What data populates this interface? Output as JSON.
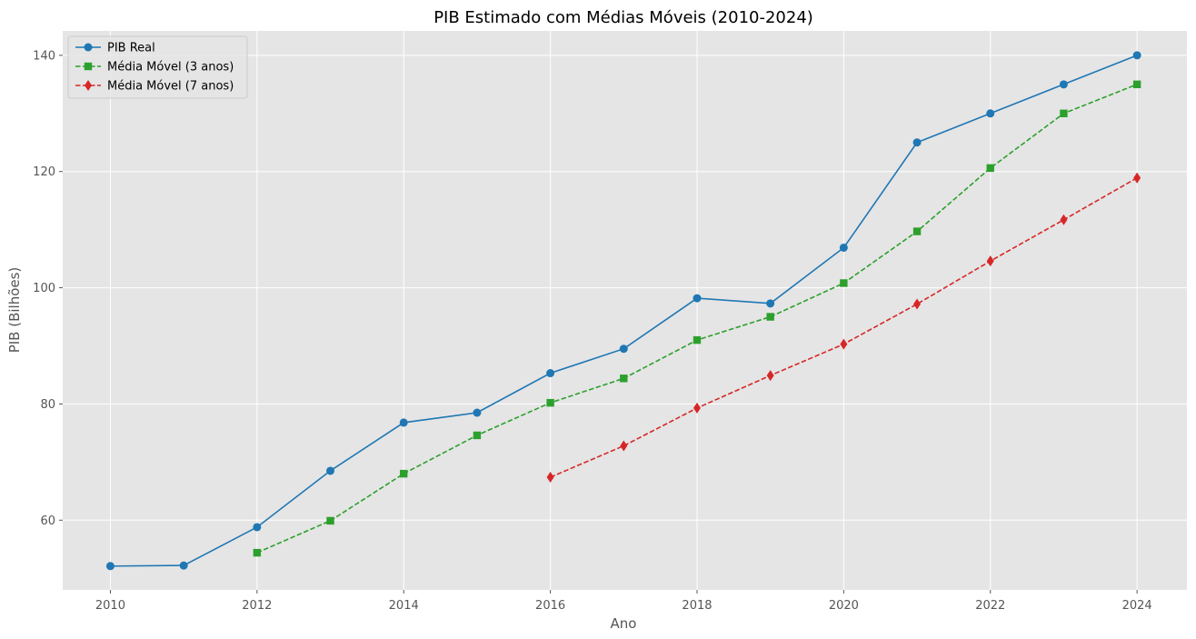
{
  "chart_data": {
    "type": "line",
    "title": "PIB Estimado com Médias Móveis (2010-2024)",
    "xlabel": "Ano",
    "ylabel": "PIB (Bilhões)",
    "xlim": [
      2009.35,
      2024.68
    ],
    "ylim": [
      48,
      144.2
    ],
    "xticks": [
      2010,
      2012,
      2014,
      2016,
      2018,
      2020,
      2022,
      2024
    ],
    "yticks": [
      60,
      80,
      100,
      120,
      140
    ],
    "grid": true,
    "legend_position": "top-left",
    "background": "#e5e5e5",
    "x": [
      2010,
      2011,
      2012,
      2013,
      2014,
      2015,
      2016,
      2017,
      2018,
      2019,
      2020,
      2021,
      2022,
      2023,
      2024
    ],
    "series": [
      {
        "name": "PIB Real",
        "color": "#1f77b4",
        "line_style": "solid",
        "marker": "circle",
        "values": [
          52.1,
          52.2,
          58.8,
          68.5,
          76.8,
          78.5,
          85.3,
          89.5,
          98.2,
          97.3,
          106.9,
          125.0,
          130.0,
          135.0,
          140.0
        ]
      },
      {
        "name": "Média Móvel (3 anos)",
        "color": "#2ca02c",
        "line_style": "dashed",
        "marker": "square",
        "values": [
          null,
          null,
          54.4,
          59.9,
          68.0,
          74.6,
          80.2,
          84.4,
          91.0,
          95.0,
          100.8,
          109.7,
          120.6,
          130.0,
          135.0
        ]
      },
      {
        "name": "Média Móvel (7 anos)",
        "color": "#d62728",
        "line_style": "dashed",
        "marker": "diamond",
        "values": [
          null,
          null,
          null,
          null,
          null,
          null,
          67.4,
          72.8,
          79.3,
          84.9,
          90.3,
          97.2,
          104.6,
          111.7,
          118.9
        ]
      }
    ]
  }
}
